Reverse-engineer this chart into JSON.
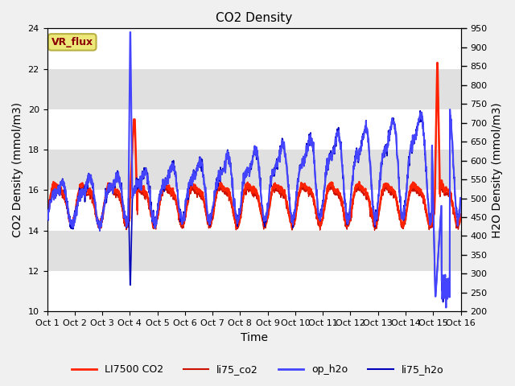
{
  "title": "CO2 Density",
  "xlabel": "Time",
  "ylabel_left": "CO2 Density (mmol/m3)",
  "ylabel_right": "H2O Density (mmol/m3)",
  "ylim_left": [
    10,
    24
  ],
  "ylim_right": [
    200,
    950
  ],
  "yticks_left": [
    10,
    12,
    14,
    16,
    18,
    20,
    22,
    24
  ],
  "yticks_right": [
    200,
    250,
    300,
    350,
    400,
    450,
    500,
    550,
    600,
    650,
    700,
    750,
    800,
    850,
    900,
    950
  ],
  "vr_flux_label": "VR_flux",
  "vr_flux_bg": "#ede87a",
  "vr_flux_text_color": "#8b0000",
  "vr_flux_edge_color": "#b8b040",
  "legend_labels": [
    "LI7500 CO2",
    "li75_co2",
    "op_h2o",
    "li75_h2o"
  ],
  "color_li7500": "#ff2200",
  "color_li75_co2": "#cc1100",
  "color_op_h2o": "#4444ff",
  "color_li75_h2o": "#0000bb",
  "bg_light": "#ececec",
  "bg_dark": "#d8d8d8",
  "title_fontsize": 11,
  "axis_label_fontsize": 10,
  "tick_fontsize": 8
}
